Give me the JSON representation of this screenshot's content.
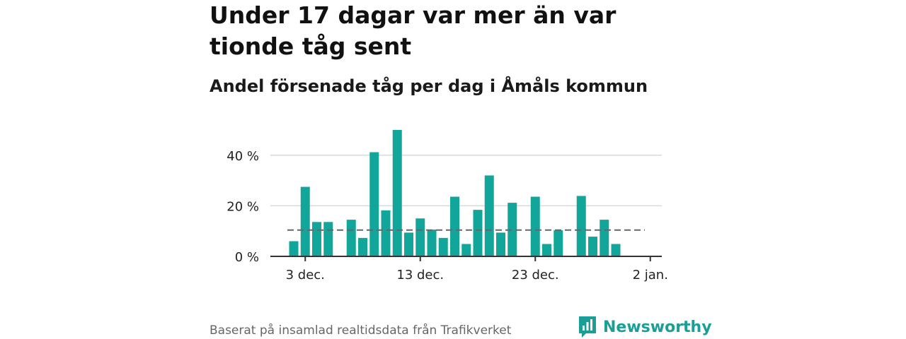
{
  "header": {
    "title": "Under 17 dagar var mer än var tionde tåg sent",
    "subtitle": "Andel försenade tåg per dag i Åmåls kommun"
  },
  "footer": {
    "source": "Baserat på insamlad realtidsdata från Trafikverket",
    "brand": "Newsworthy"
  },
  "colors": {
    "bar": "#12a69a",
    "average_line": "#666666",
    "brand": "#1a9e96"
  },
  "icons": {
    "brand_logo": "newsworthy-logo-icon"
  },
  "chart_data": {
    "type": "bar",
    "title": "Andel försenade tåg per dag i Åmåls kommun",
    "xlabel": "",
    "ylabel": "",
    "ylim": [
      0,
      50
    ],
    "y_ticks": [
      0,
      20,
      40
    ],
    "y_tick_labels": [
      "0 %",
      "20 %",
      "40 %"
    ],
    "x_ticks": [
      "3 dec.",
      "13 dec.",
      "23 dec.",
      "2 jan."
    ],
    "grid": true,
    "average": 10.4,
    "categories": [
      "2 dec.",
      "3 dec.",
      "4 dec.",
      "5 dec.",
      "6 dec.",
      "7 dec.",
      "8 dec.",
      "9 dec.",
      "10 dec.",
      "11 dec.",
      "12 dec.",
      "13 dec.",
      "14 dec.",
      "15 dec.",
      "16 dec.",
      "17 dec.",
      "18 dec.",
      "19 dec.",
      "20 dec.",
      "21 dec.",
      "22 dec.",
      "23 dec.",
      "24 dec.",
      "25 dec.",
      "26 dec.",
      "27 dec.",
      "28 dec.",
      "29 dec.",
      "30 dec.",
      "31 dec."
    ],
    "values": [
      6.0,
      27.5,
      13.6,
      13.6,
      0,
      14.5,
      7.3,
      41.2,
      18.2,
      50.0,
      9.4,
      15.0,
      10.6,
      7.3,
      23.6,
      4.9,
      18.4,
      32.0,
      9.4,
      21.2,
      0,
      23.6,
      4.9,
      10.3,
      0,
      23.9,
      7.8,
      14.5,
      4.9,
      0
    ]
  }
}
